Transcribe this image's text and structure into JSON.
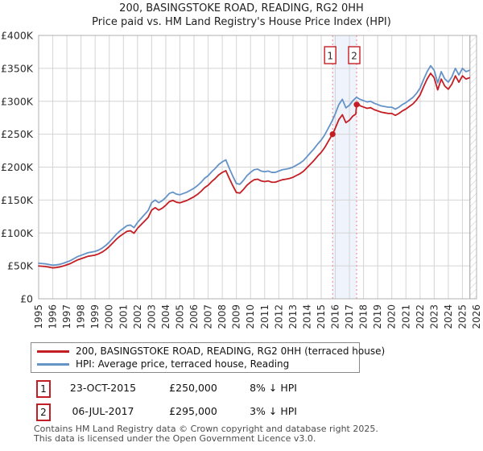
{
  "title": {
    "line1": "200, BASINGSTOKE ROAD, READING, RG2 0HH",
    "line2": "Price paid vs. HM Land Registry's House Price Index (HPI)"
  },
  "chart_data": {
    "type": "line",
    "xlabel": "",
    "ylabel": "",
    "xlim": [
      1995,
      2026
    ],
    "ylim": [
      0,
      400
    ],
    "grid": true,
    "legend_position": "bottom",
    "x_tick_labels": [
      "1995",
      "1996",
      "1997",
      "1998",
      "1999",
      "2000",
      "2001",
      "2002",
      "2003",
      "2004",
      "2005",
      "2006",
      "2007",
      "2008",
      "2009",
      "2010",
      "2011",
      "2012",
      "2013",
      "2014",
      "2015",
      "2016",
      "2017",
      "2018",
      "2019",
      "2020",
      "2021",
      "2022",
      "2023",
      "2024",
      "2025",
      "2026"
    ],
    "y_ticks": [
      {
        "value": 0,
        "label": "£0"
      },
      {
        "value": 50,
        "label": "£50K"
      },
      {
        "value": 100,
        "label": "£100K"
      },
      {
        "value": 150,
        "label": "£150K"
      },
      {
        "value": 200,
        "label": "£200K"
      },
      {
        "value": 250,
        "label": "£250K"
      },
      {
        "value": 300,
        "label": "£300K"
      },
      {
        "value": 350,
        "label": "£350K"
      },
      {
        "value": 400,
        "label": "£400K"
      }
    ],
    "y_unit_note": "values in thousands of pounds",
    "no_data_from": 2025.53,
    "band": {
      "from": 2015.81,
      "to": 2017.51
    },
    "colors": {
      "property": "#c41e25",
      "hpi": "#6593c8",
      "grid": "#d4d4d4",
      "border": "#b0b0b0",
      "band": "#eef3fc",
      "event_line": "#ef8282",
      "hatch": "#c9c9c9",
      "tick_text": "#2b2b2b"
    },
    "sale_events": [
      {
        "label": "1",
        "x": 2015.81,
        "value_k": 250,
        "date": "23-OCT-2015",
        "price": "£250,000",
        "hpi_delta": "8% ↓ HPI"
      },
      {
        "label": "2",
        "x": 2017.51,
        "value_k": 295,
        "date": "06-JUL-2017",
        "price": "£295,000",
        "hpi_delta": "3% ↓ HPI"
      }
    ],
    "series": [
      {
        "name": "200, BASINGSTOKE ROAD, READING, RG2 0HH (terraced house)",
        "color": "#c41e25",
        "x": [
          1995,
          1995.25,
          1995.5,
          1995.75,
          1996,
          1996.25,
          1996.5,
          1996.75,
          1997,
          1997.25,
          1997.5,
          1997.75,
          1998,
          1998.25,
          1998.5,
          1998.75,
          1999,
          1999.25,
          1999.5,
          1999.75,
          2000,
          2000.25,
          2000.5,
          2000.75,
          2001,
          2001.25,
          2001.5,
          2001.75,
          2002,
          2002.25,
          2002.5,
          2002.75,
          2003,
          2003.25,
          2003.5,
          2003.75,
          2004,
          2004.25,
          2004.5,
          2004.75,
          2005,
          2005.25,
          2005.5,
          2005.75,
          2006,
          2006.25,
          2006.5,
          2006.75,
          2007,
          2007.25,
          2007.5,
          2007.75,
          2008,
          2008.25,
          2008.5,
          2008.75,
          2009,
          2009.25,
          2009.5,
          2009.75,
          2010,
          2010.25,
          2010.5,
          2010.75,
          2011,
          2011.25,
          2011.5,
          2011.75,
          2012,
          2012.25,
          2012.5,
          2012.75,
          2013,
          2013.25,
          2013.5,
          2013.75,
          2014,
          2014.25,
          2014.5,
          2014.75,
          2015,
          2015.25,
          2015.5,
          2015.75,
          2015.81,
          2016,
          2016.25,
          2016.5,
          2016.75,
          2017,
          2017.25,
          2017.45,
          2017.51,
          2017.6,
          2017.75,
          2018,
          2018.25,
          2018.5,
          2018.75,
          2019,
          2019.25,
          2019.5,
          2019.75,
          2020,
          2020.25,
          2020.5,
          2020.75,
          2021,
          2021.25,
          2021.5,
          2021.75,
          2022,
          2022.25,
          2022.5,
          2022.75,
          2023,
          2023.25,
          2023.5,
          2023.75,
          2024,
          2024.25,
          2024.5,
          2024.75,
          2025,
          2025.25,
          2025.5
        ],
        "y": [
          49.8,
          49.4,
          48.9,
          48,
          47,
          47.5,
          48.4,
          49.8,
          51.7,
          53.5,
          56.3,
          59,
          60.9,
          62.7,
          64.6,
          65.5,
          66.4,
          68.3,
          71,
          74.7,
          79.3,
          84.9,
          90.4,
          95,
          98.7,
          102.4,
          103.3,
          99.6,
          107,
          112.6,
          118.1,
          123.6,
          134.7,
          138.4,
          134.7,
          137.5,
          142.1,
          147.6,
          149.4,
          146.7,
          145.8,
          147.6,
          149.4,
          152.2,
          155,
          158.7,
          163.3,
          168.8,
          172.5,
          178,
          182.7,
          188.2,
          191.9,
          194.6,
          182.7,
          171.6,
          161.4,
          160.5,
          166.1,
          172.5,
          177.1,
          180.8,
          181.7,
          179,
          178,
          179,
          177.1,
          177.1,
          179,
          180.8,
          181.7,
          182.7,
          184.5,
          187.3,
          190,
          193.7,
          199.3,
          204.8,
          210.3,
          216.8,
          222.3,
          229.7,
          238.9,
          248.2,
          250,
          259.2,
          272.1,
          279.5,
          267.5,
          271.2,
          277.7,
          280.5,
          295,
          298,
          293.2,
          291.2,
          289.3,
          290.3,
          287.3,
          285.4,
          283.5,
          282.5,
          281.5,
          281.5,
          278.6,
          281.5,
          285.4,
          288.3,
          292.2,
          296.1,
          301.9,
          309.6,
          322.2,
          333.8,
          342.5,
          335.7,
          317.3,
          333.8,
          323.1,
          318.3,
          326,
          338.6,
          328.9,
          338.6,
          333.8,
          335.7
        ]
      },
      {
        "name": "HPI: Average price, terraced house, Reading",
        "color": "#6593c8",
        "x": [
          1995,
          1995.25,
          1995.5,
          1995.75,
          1996,
          1996.25,
          1996.5,
          1996.75,
          1997,
          1997.25,
          1997.5,
          1997.75,
          1998,
          1998.25,
          1998.5,
          1998.75,
          1999,
          1999.25,
          1999.5,
          1999.75,
          2000,
          2000.25,
          2000.5,
          2000.75,
          2001,
          2001.25,
          2001.5,
          2001.75,
          2002,
          2002.25,
          2002.5,
          2002.75,
          2003,
          2003.25,
          2003.5,
          2003.75,
          2004,
          2004.25,
          2004.5,
          2004.75,
          2005,
          2005.25,
          2005.5,
          2005.75,
          2006,
          2006.25,
          2006.5,
          2006.75,
          2007,
          2007.25,
          2007.5,
          2007.75,
          2008,
          2008.25,
          2008.5,
          2008.75,
          2009,
          2009.25,
          2009.5,
          2009.75,
          2010,
          2010.25,
          2010.5,
          2010.75,
          2011,
          2011.25,
          2011.5,
          2011.75,
          2012,
          2012.25,
          2012.5,
          2012.75,
          2013,
          2013.25,
          2013.5,
          2013.75,
          2014,
          2014.25,
          2014.5,
          2014.75,
          2015,
          2015.25,
          2015.5,
          2015.75,
          2016,
          2016.25,
          2016.5,
          2016.75,
          2017,
          2017.25,
          2017.5,
          2017.75,
          2018,
          2018.25,
          2018.5,
          2018.75,
          2019,
          2019.25,
          2019.5,
          2019.75,
          2020,
          2020.25,
          2020.5,
          2020.75,
          2021,
          2021.25,
          2021.5,
          2021.75,
          2022,
          2022.25,
          2022.5,
          2022.75,
          2023,
          2023.25,
          2023.5,
          2023.75,
          2024,
          2024.25,
          2024.5,
          2024.75,
          2025,
          2025.25,
          2025.5
        ],
        "y": [
          54,
          53.5,
          53,
          52,
          51,
          51.5,
          52.5,
          54,
          56,
          58,
          61,
          64,
          66,
          68,
          70,
          71,
          72,
          74,
          77,
          81,
          86,
          92,
          98,
          103,
          107,
          111,
          112,
          108,
          116,
          122,
          128,
          134,
          146,
          150,
          146,
          149,
          154,
          160,
          162,
          159,
          158,
          160,
          162,
          165,
          168,
          172,
          177,
          183,
          187,
          193,
          198,
          204,
          208,
          211,
          198,
          186,
          175,
          174,
          180,
          187,
          192,
          196,
          197,
          194,
          193,
          194,
          192,
          192,
          194,
          196,
          197,
          198,
          200,
          203,
          206,
          210,
          216,
          222,
          228,
          235,
          241,
          249,
          259,
          269,
          281,
          295,
          303,
          290,
          294,
          301,
          306,
          303,
          301,
          299,
          300,
          297,
          295,
          293,
          292,
          291,
          291,
          288,
          291,
          295,
          298,
          302,
          306,
          312,
          320,
          333,
          345,
          354,
          347,
          328,
          345,
          334,
          329,
          337,
          350,
          340,
          350,
          345,
          347
        ]
      }
    ]
  },
  "footer": {
    "line1": "Contains HM Land Registry data © Crown copyright and database right 2025.",
    "line2": "This data is licensed under the Open Government Licence v3.0."
  }
}
